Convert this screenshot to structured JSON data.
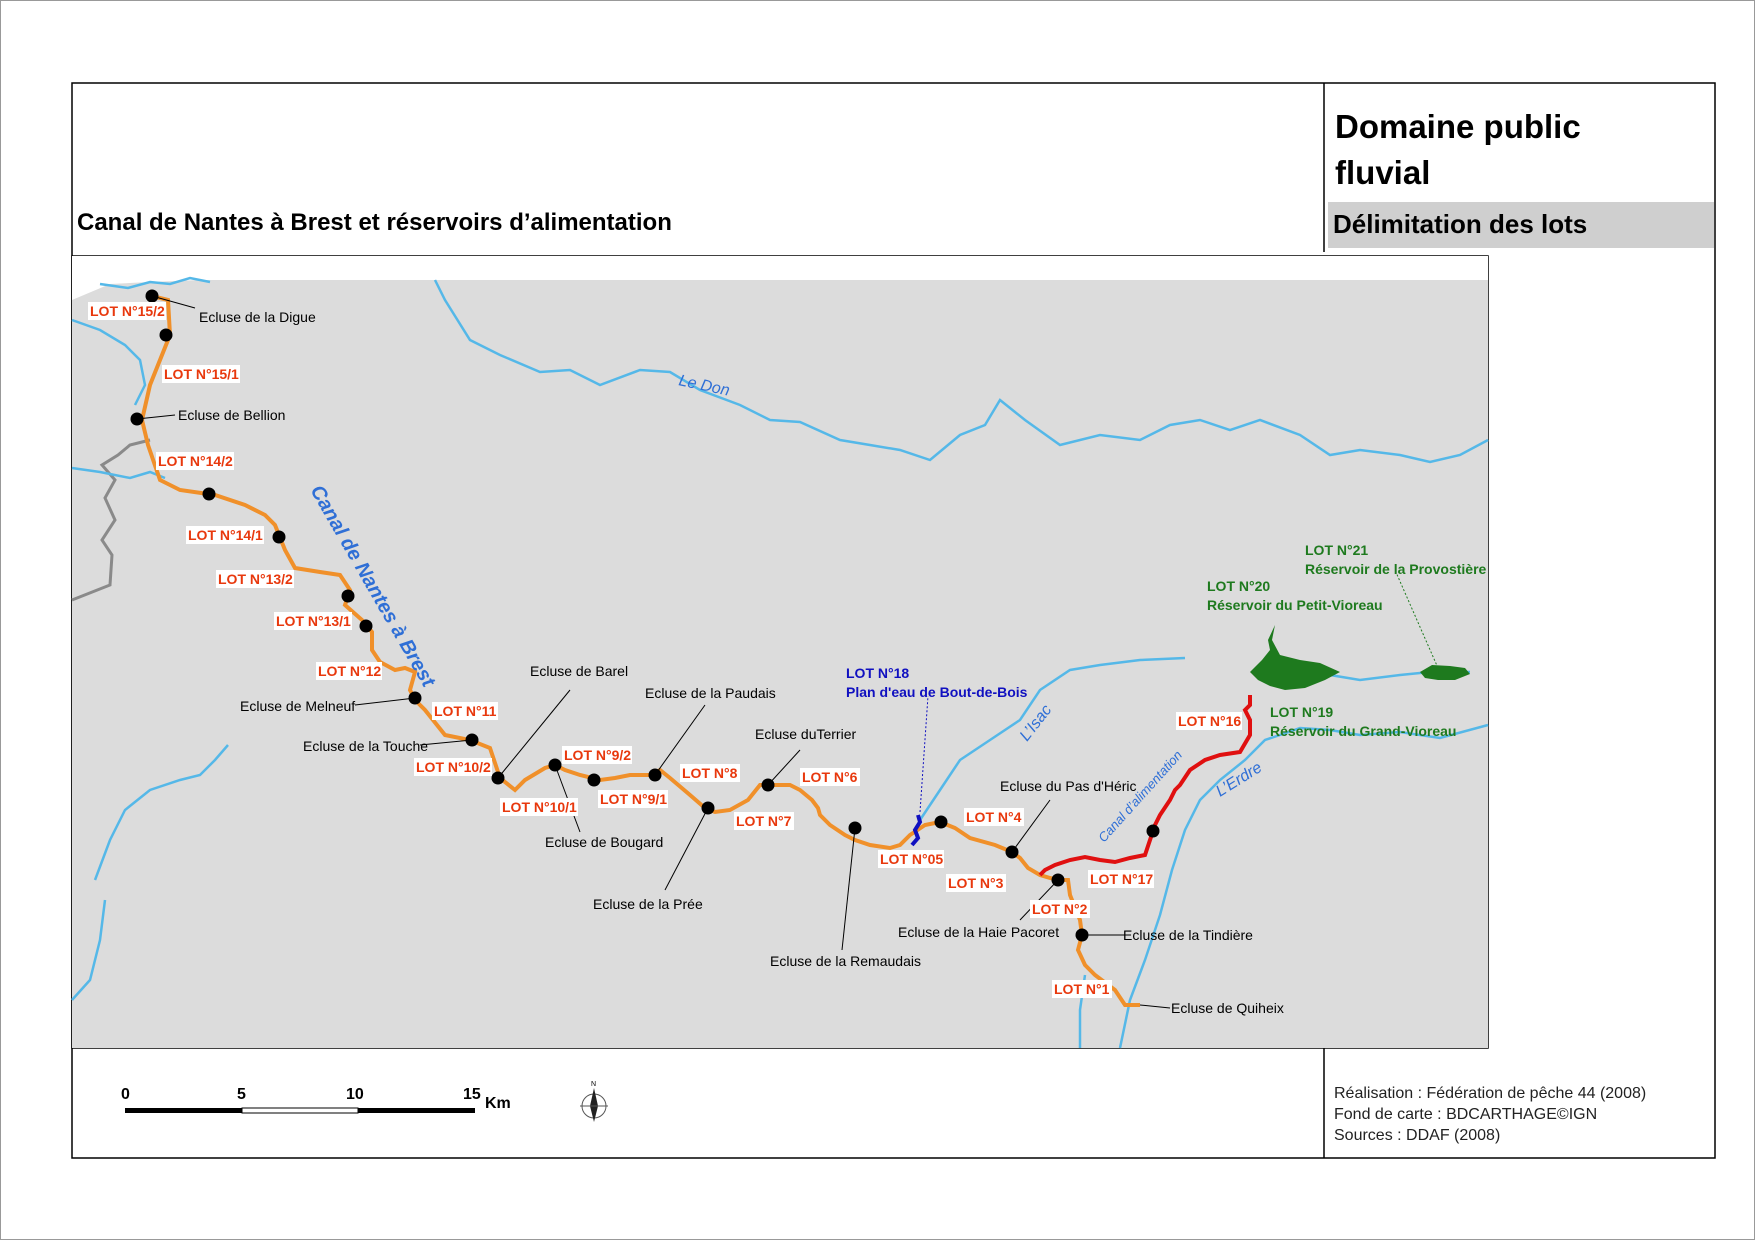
{
  "title": "Canal de Nantes à Brest et réservoirs d’alimentation",
  "header": {
    "domaine_line1": "Domaine public",
    "domaine_line2": "fluvial",
    "subtitle": "Délimitation des lots"
  },
  "credits": {
    "realisation": "Réalisation : Fédération de pêche 44 (2008)",
    "fond": "Fond de carte : BDCARTHAGE©IGN",
    "sources": "Sources : DDAF (2008)"
  },
  "scale_bar": {
    "ticks": [
      "0",
      "5",
      "10",
      "15"
    ],
    "unit": "Km",
    "north": "N"
  },
  "colors": {
    "map_background": "#dcdcdc",
    "canal_lots": "#f0902a",
    "feeder_canal_lots": "#e01010",
    "plan_eau_lot": "#1010c0",
    "reservoirs": "#1e7a1e",
    "rivers": "#55b8e8",
    "lot_labels": "#e8380d"
  },
  "map": {
    "canal_name": "Canal de Nantes à Brest",
    "rivers": {
      "le_don": "Le Don",
      "isac": "L’Isac",
      "erdre": "L’Erdre",
      "canal_alim": "Canal d’alimentation"
    },
    "lots": [
      "LOT N°15/2",
      "LOT N°15/1",
      "LOT N°14/2",
      "LOT N°14/1",
      "LOT N°13/2",
      "LOT N°13/1",
      "LOT N°12",
      "LOT N°11",
      "LOT N°10/2",
      "LOT N°10/1",
      "LOT N°9/2",
      "LOT N°9/1",
      "LOT N°8",
      "LOT N°7",
      "LOT N°6",
      "LOT N°05",
      "LOT N°4",
      "LOT N°3",
      "LOT N°2",
      "LOT N°1",
      "LOT N°17",
      "LOT N°16"
    ],
    "locks": [
      "Ecluse de la Digue",
      "Ecluse de Bellion",
      "Ecluse de Melneuf",
      "Ecluse de la Touche",
      "Ecluse de Barel",
      "Ecluse de Bougard",
      "Ecluse de la Paudais",
      "Ecluse de la Prée",
      "Ecluse duTerrier",
      "Ecluse de la Remaudais",
      "Ecluse du Pas d'Héric",
      "Ecluse de la Haie Pacoret",
      "Ecluse de la Tindière",
      "Ecluse de Quiheix"
    ],
    "lot18": {
      "label": "LOT N°18",
      "name": "Plan d'eau de Bout-de-Bois"
    },
    "lot19": {
      "label": "LOT N°19",
      "name": "Réservoir du Grand-Vioreau"
    },
    "lot20": {
      "label": "LOT N°20",
      "name": "Réservoir du Petit-Vioreau"
    },
    "lot21": {
      "label": "LOT N°21",
      "name": "Réservoir de la Provostière"
    }
  }
}
